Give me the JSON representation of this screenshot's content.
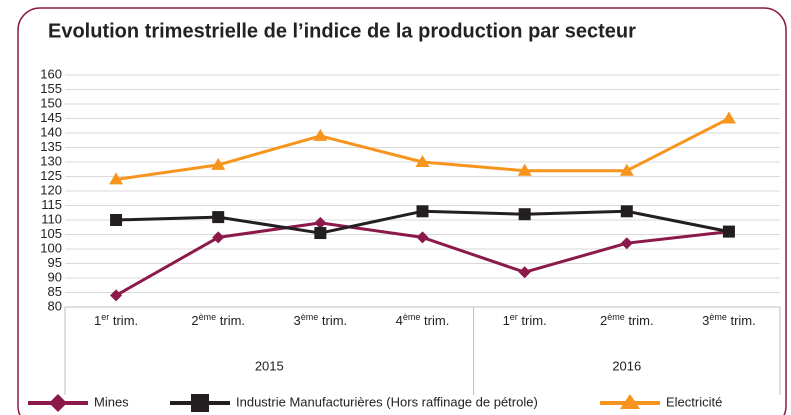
{
  "chart_data": {
    "type": "line",
    "title": "Evolution trimestrielle de l’indice de la production par secteur",
    "categories": [
      "1er trim.",
      "2ème trim.",
      "3ème trim.",
      "4ème trim.",
      "1er trim.",
      "2ème trim.",
      "3ème trim."
    ],
    "groups": [
      {
        "label": "2015",
        "span": 4
      },
      {
        "label": "2016",
        "span": 3
      }
    ],
    "series": [
      {
        "name": "Mines",
        "color": "#8b1a4a",
        "marker": "diamond",
        "values": [
          84,
          104,
          109,
          104,
          92,
          102,
          106
        ]
      },
      {
        "name": "Industrie Manufacturières (Hors raffinage de pétrole)",
        "color": "#231f20",
        "marker": "square",
        "values": [
          110,
          111,
          105.5,
          113,
          112,
          113,
          106
        ]
      },
      {
        "name": "Electricité",
        "color": "#f7941d",
        "marker": "triangle",
        "values": [
          124,
          129,
          139,
          130,
          127,
          127,
          145
        ]
      }
    ],
    "ylim": [
      80,
      160
    ],
    "yticks": [
      80,
      85,
      90,
      95,
      100,
      105,
      110,
      115,
      120,
      125,
      130,
      135,
      140,
      145,
      150,
      155,
      160
    ],
    "grid": true,
    "legend": "bottom"
  }
}
